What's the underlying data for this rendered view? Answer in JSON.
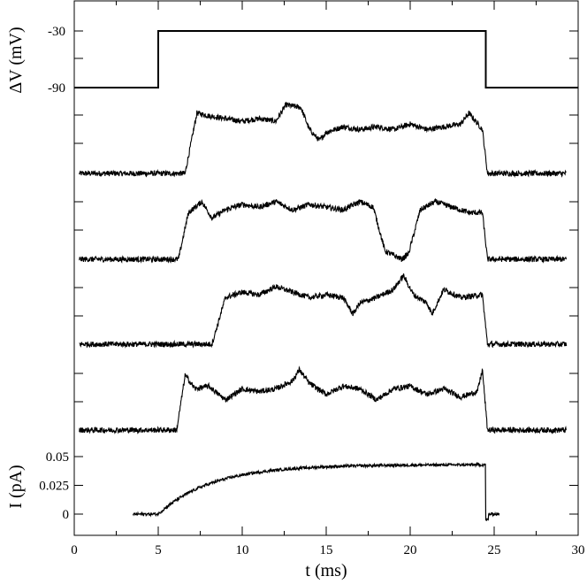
{
  "chart_data": {
    "type": "line",
    "x_axis": {
      "label": "t  (ms)",
      "range": [
        0,
        30
      ],
      "ticks": [
        0,
        5,
        10,
        15,
        20,
        25,
        30
      ],
      "tick_labels": [
        "0",
        "5",
        "10",
        "15",
        "20",
        "25",
        "30"
      ]
    },
    "voltage_panel": {
      "ylabel": "ΔV  (mV)",
      "tick_labels": [
        "-30",
        "-90"
      ],
      "levels_mV": [
        -90,
        -30
      ],
      "protocol": {
        "baseline_mV": -90,
        "step_mV": -30,
        "step_on_ms": 5.0,
        "step_off_ms": 24.5,
        "t_start_ms": 0,
        "t_end_ms": 30
      }
    },
    "traces_panel": {
      "unlabeled_ticks": true,
      "traces": [
        {
          "t_start_ms": 0.3,
          "t_end_ms": 29.3,
          "noise": 0.05,
          "points": [
            [
              0.3,
              0.0
            ],
            [
              6.6,
              0.0
            ],
            [
              7.3,
              1.1
            ],
            [
              8,
              1.05
            ],
            [
              9,
              1.0
            ],
            [
              10,
              0.95
            ],
            [
              11,
              1.0
            ],
            [
              12,
              0.95
            ],
            [
              12.6,
              1.25
            ],
            [
              13.5,
              1.2
            ],
            [
              14,
              0.8
            ],
            [
              14.6,
              0.6
            ],
            [
              15,
              0.75
            ],
            [
              16,
              0.85
            ],
            [
              17,
              0.8
            ],
            [
              18,
              0.85
            ],
            [
              19,
              0.8
            ],
            [
              20,
              0.9
            ],
            [
              21,
              0.8
            ],
            [
              22,
              0.85
            ],
            [
              23,
              0.9
            ],
            [
              23.5,
              1.1
            ],
            [
              24.3,
              0.8
            ],
            [
              24.6,
              0.0
            ],
            [
              29.3,
              0.0
            ]
          ]
        },
        {
          "t_start_ms": 0.3,
          "t_end_ms": 29.3,
          "noise": 0.05,
          "points": [
            [
              0.3,
              0.0
            ],
            [
              6.2,
              0.0
            ],
            [
              6.8,
              0.85
            ],
            [
              7.6,
              1.05
            ],
            [
              8.2,
              0.75
            ],
            [
              9,
              0.9
            ],
            [
              10,
              1.0
            ],
            [
              11,
              0.95
            ],
            [
              12,
              1.05
            ],
            [
              13,
              0.9
            ],
            [
              14,
              1.0
            ],
            [
              15,
              0.95
            ],
            [
              16,
              0.9
            ],
            [
              17,
              1.05
            ],
            [
              17.8,
              0.95
            ],
            [
              18.5,
              0.15
            ],
            [
              19.5,
              0.0
            ],
            [
              19.9,
              0.1
            ],
            [
              20.6,
              0.9
            ],
            [
              21.5,
              1.05
            ],
            [
              22.5,
              0.95
            ],
            [
              23.5,
              0.85
            ],
            [
              24.3,
              0.85
            ],
            [
              24.6,
              0.0
            ],
            [
              29.3,
              0.0
            ]
          ]
        },
        {
          "t_start_ms": 0.3,
          "t_end_ms": 29.3,
          "noise": 0.05,
          "points": [
            [
              0.3,
              0.0
            ],
            [
              8.2,
              0.0
            ],
            [
              9,
              0.85
            ],
            [
              10,
              0.95
            ],
            [
              11,
              0.9
            ],
            [
              12,
              1.05
            ],
            [
              13,
              0.95
            ],
            [
              14,
              0.85
            ],
            [
              15,
              0.9
            ],
            [
              16,
              0.85
            ],
            [
              16.6,
              0.55
            ],
            [
              17,
              0.75
            ],
            [
              18,
              0.85
            ],
            [
              19,
              1.0
            ],
            [
              19.6,
              1.25
            ],
            [
              20.2,
              0.9
            ],
            [
              21,
              0.75
            ],
            [
              21.3,
              0.55
            ],
            [
              22,
              1.0
            ],
            [
              23,
              0.85
            ],
            [
              24.3,
              0.9
            ],
            [
              24.6,
              0.0
            ],
            [
              29.3,
              0.0
            ]
          ]
        },
        {
          "t_start_ms": 0.3,
          "t_end_ms": 29.3,
          "noise": 0.05,
          "points": [
            [
              0.3,
              0.0
            ],
            [
              6.1,
              0.0
            ],
            [
              6.6,
              1.0
            ],
            [
              7.2,
              0.75
            ],
            [
              8,
              0.8
            ],
            [
              9,
              0.55
            ],
            [
              10,
              0.75
            ],
            [
              11,
              0.7
            ],
            [
              12,
              0.75
            ],
            [
              13,
              0.9
            ],
            [
              13.4,
              1.1
            ],
            [
              14,
              0.85
            ],
            [
              15,
              0.65
            ],
            [
              16,
              0.8
            ],
            [
              17,
              0.75
            ],
            [
              18,
              0.55
            ],
            [
              19,
              0.75
            ],
            [
              20,
              0.8
            ],
            [
              21,
              0.65
            ],
            [
              22,
              0.75
            ],
            [
              23,
              0.6
            ],
            [
              24,
              0.7
            ],
            [
              24.3,
              1.1
            ],
            [
              24.6,
              0.0
            ],
            [
              29.3,
              0.0
            ]
          ]
        }
      ]
    },
    "current_panel": {
      "ylabel": "I  (pA)",
      "ticks": [
        0,
        0.025,
        0.05
      ],
      "tick_labels": [
        "0",
        "0.025",
        "0.05"
      ],
      "range": [
        -0.012,
        0.07
      ],
      "trace": {
        "t_start_ms": 3.5,
        "t_rise_ms": 5.0,
        "tau_ms": 3.2,
        "amplitude_pA": 0.043,
        "t_off_ms": 24.5,
        "t_end_ms": 25.3,
        "noise_pA": 0.0012
      }
    }
  }
}
